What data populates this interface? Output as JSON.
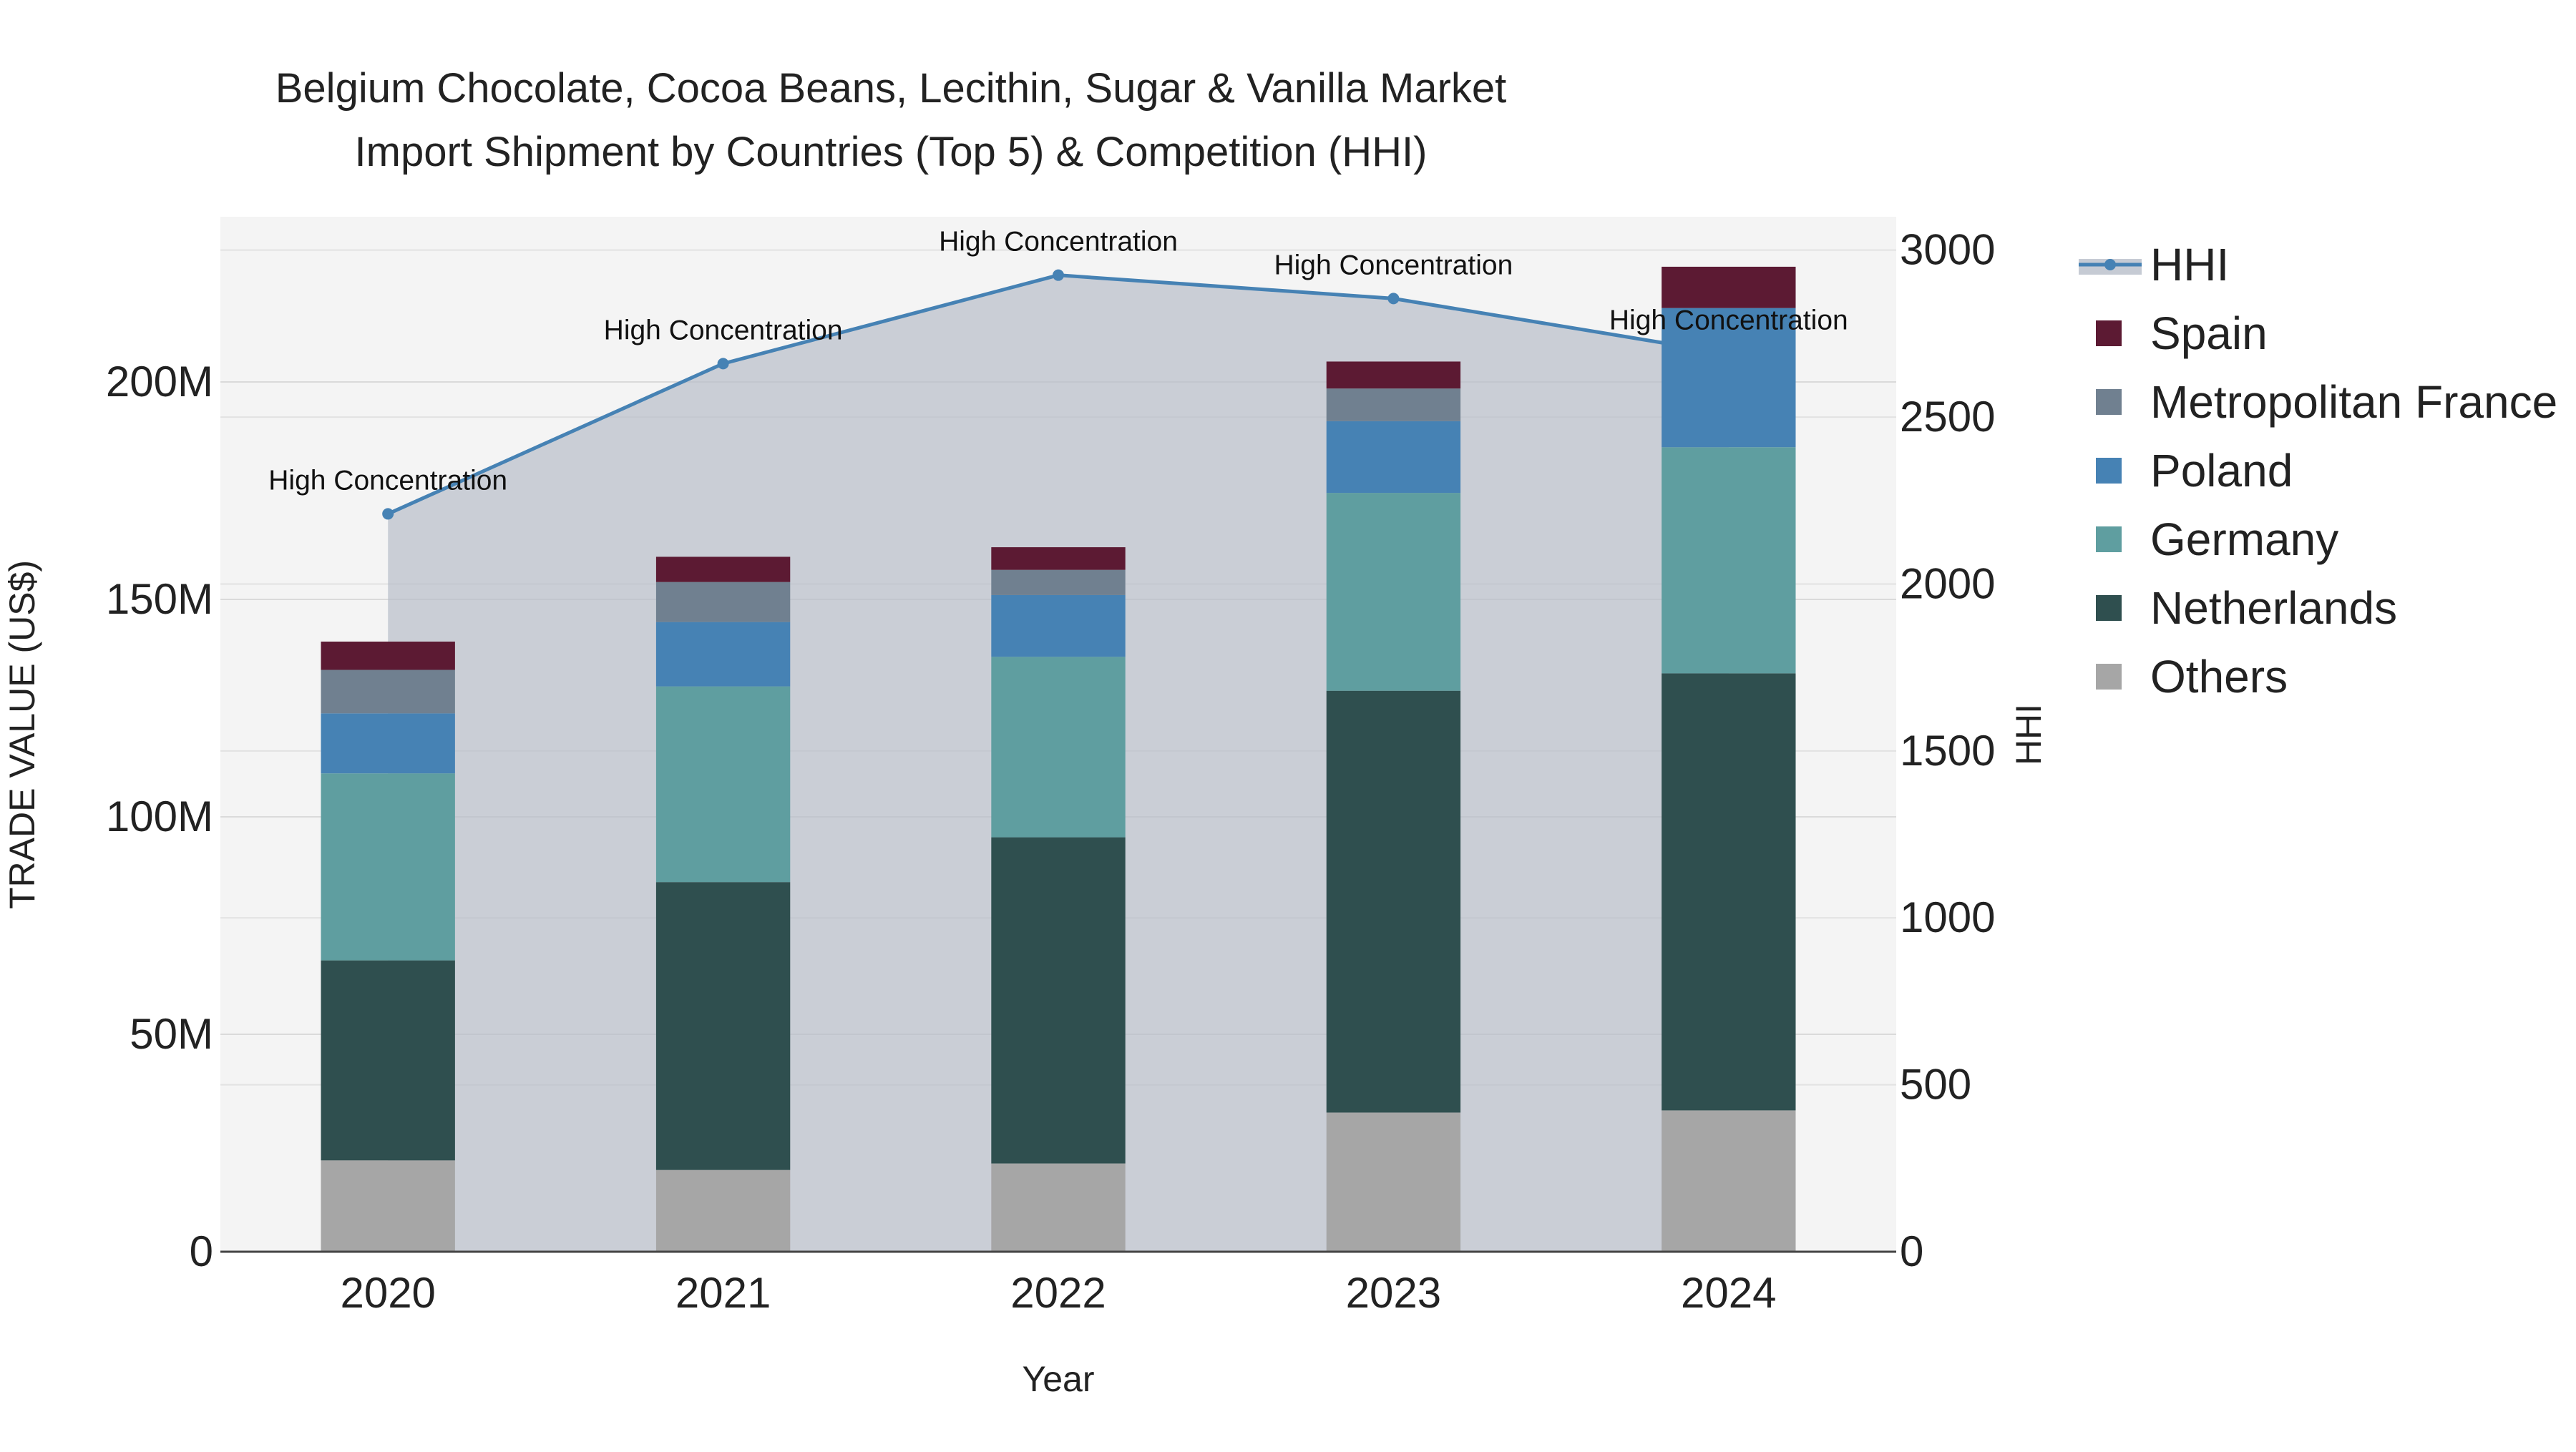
{
  "chart_data": {
    "type": "bar",
    "title_line1": "Belgium Chocolate, Cocoa Beans, Lecithin, Sugar & Vanilla Market",
    "title_line2": "Import Shipment by Countries (Top 5) & Competition (HHI)",
    "xlabel": "Year",
    "ylabel": "TRADE VALUE (US$)",
    "y2label": "HHI",
    "categories": [
      "2020",
      "2021",
      "2022",
      "2023",
      "2024"
    ],
    "ylim": [
      0,
      238000000
    ],
    "y2lim": [
      0,
      3100
    ],
    "y_ticks": [
      {
        "value": 0,
        "label": "0"
      },
      {
        "value": 50000000,
        "label": "50M"
      },
      {
        "value": 100000000,
        "label": "100M"
      },
      {
        "value": 150000000,
        "label": "150M"
      },
      {
        "value": 200000000,
        "label": "200M"
      }
    ],
    "y2_ticks": [
      {
        "value": 0,
        "label": "0"
      },
      {
        "value": 500,
        "label": "500"
      },
      {
        "value": 1000,
        "label": "1000"
      },
      {
        "value": 1500,
        "label": "1500"
      },
      {
        "value": 2000,
        "label": "2000"
      },
      {
        "value": 2500,
        "label": "2500"
      },
      {
        "value": 3000,
        "label": "3000"
      }
    ],
    "stack_order": [
      "Others",
      "Netherlands",
      "Germany",
      "Poland",
      "Metropolitan France",
      "Spain"
    ],
    "series": [
      {
        "name": "Others",
        "color": "#a6a6a6",
        "values": [
          21000000,
          18800000,
          20300000,
          32000000,
          32500000
        ]
      },
      {
        "name": "Netherlands",
        "color": "#2f4f4f",
        "values": [
          46000000,
          66200000,
          75000000,
          97000000,
          100500000
        ]
      },
      {
        "name": "Germany",
        "color": "#5f9ea0",
        "values": [
          43000000,
          45000000,
          41500000,
          45500000,
          52000000
        ]
      },
      {
        "name": "Poland",
        "color": "#4682b4",
        "values": [
          13800000,
          14800000,
          14200000,
          16500000,
          32000000
        ]
      },
      {
        "name": "Metropolitan France",
        "color": "#708090",
        "values": [
          10000000,
          9200000,
          5800000,
          7500000,
          0
        ]
      },
      {
        "name": "Spain",
        "color": "#5c1a33",
        "values": [
          6500000,
          5800000,
          5200000,
          6200000,
          9500000
        ]
      }
    ],
    "hhi": {
      "name": "HHI",
      "color": "#4682b4",
      "values": [
        2210,
        2660,
        2925,
        2855,
        2690
      ],
      "annotations": [
        "High Concentration",
        "High Concentration",
        "High Concentration",
        "High Concentration",
        "High Concentration"
      ]
    },
    "legend": {
      "placement": "right",
      "items": [
        "HHI",
        "Spain",
        "Metropolitan France",
        "Poland",
        "Germany",
        "Netherlands",
        "Others"
      ]
    },
    "grid": true
  }
}
